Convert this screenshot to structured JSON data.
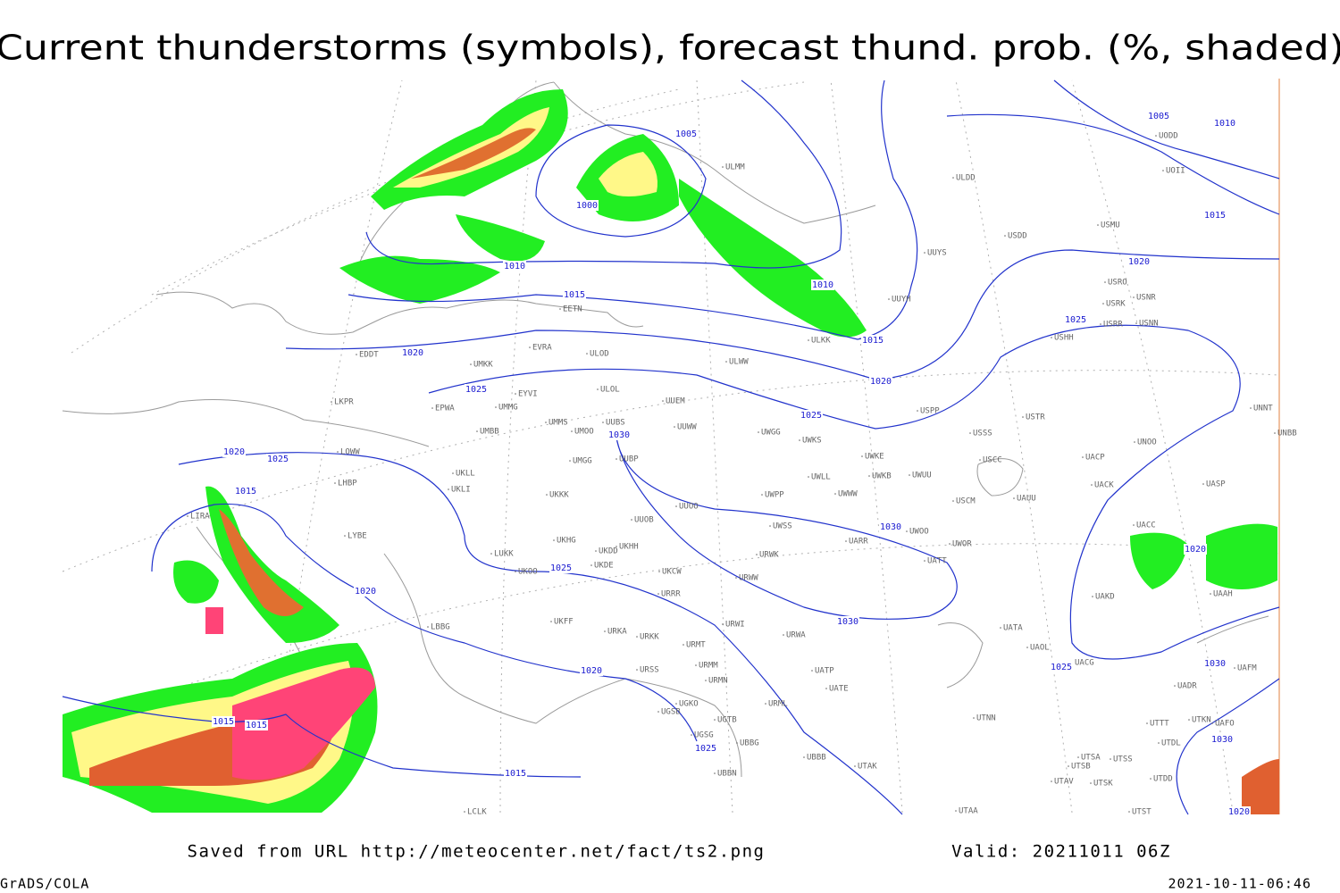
{
  "title": "Current thunderstorms (symbols), forecast thund. prob. (%, shaded)",
  "isobar_labels": [
    1005,
    1000,
    1010,
    1015,
    1010,
    1015,
    1020,
    1020,
    1025,
    1025,
    1025,
    1020,
    1015,
    1005,
    1010,
    1030,
    1030,
    1030,
    1025,
    1020,
    1025,
    1015,
    1020,
    1020,
    1015,
    1015,
    1025,
    1015,
    1025,
    1030,
    1030,
    1020,
    1020
  ],
  "stations": [
    "ULMM",
    "ULDD",
    "USDD",
    "USMU",
    "UUYS",
    "USRO",
    "USRK",
    "USNR",
    "UUYH",
    "USRR",
    "USNN",
    "USHH",
    "ULKK",
    "UODD",
    "UOII",
    "EDDT",
    "EVRA",
    "ULOD",
    "ULWW",
    "UMKK",
    "EYVI",
    "ULOL",
    "UUEM",
    "EPWA",
    "UMMG",
    "LKPR",
    "UMMS",
    "UMOO",
    "UUBS",
    "UUWW",
    "UWGG",
    "UWKS",
    "USPP",
    "USSS",
    "USTR",
    "UNOO",
    "UNNT",
    "UNBB",
    "LOWW",
    "UMBB",
    "UMGG",
    "UUBP",
    "UWKE",
    "UWKB",
    "UWUU",
    "USCC",
    "UACP",
    "UAUU",
    "UACK",
    "UASP",
    "USCM",
    "LHBP",
    "UKLL",
    "UKLI",
    "UWLL",
    "UWWW",
    "UUOO",
    "UWPP",
    "UKKK",
    "UUOB",
    "UWSS",
    "UWOO",
    "UARR",
    "UWOR",
    "UACC",
    "LYBE",
    "UKHH",
    "UKHG",
    "UKDD",
    "LUKK",
    "UKOO",
    "UKDE",
    "UKCW",
    "URWK",
    "UATT",
    "LIRA",
    "URRR",
    "URWW",
    "UAKD",
    "UAAH",
    "UKFF",
    "URWI",
    "LBBG",
    "URKA",
    "URKK",
    "URMT",
    "URWA",
    "UATA",
    "UAOL",
    "UACG",
    "UAFM",
    "URSS",
    "URMM",
    "URMN",
    "UATP",
    "UATE",
    "UADR",
    "UGKO",
    "URML",
    "UGSB",
    "UGTB",
    "UTNN",
    "UTTT",
    "UTKN",
    "UAFO",
    "UGSG",
    "UBBG",
    "UTDL",
    "UBBB",
    "UTAK",
    "UTSA",
    "UTSS",
    "UTSB",
    "UBBN",
    "UTDD",
    "UTAV",
    "UTSK",
    "LCLK",
    "UTAA",
    "UTST",
    "EETN"
  ],
  "footer": {
    "source": "Saved from URL http://meteocenter.net/fact/ts2.png",
    "valid": "Valid: 20211011 06Z",
    "software": "GrADS/COLA",
    "timestamp": "2021-10-11-06:46"
  }
}
